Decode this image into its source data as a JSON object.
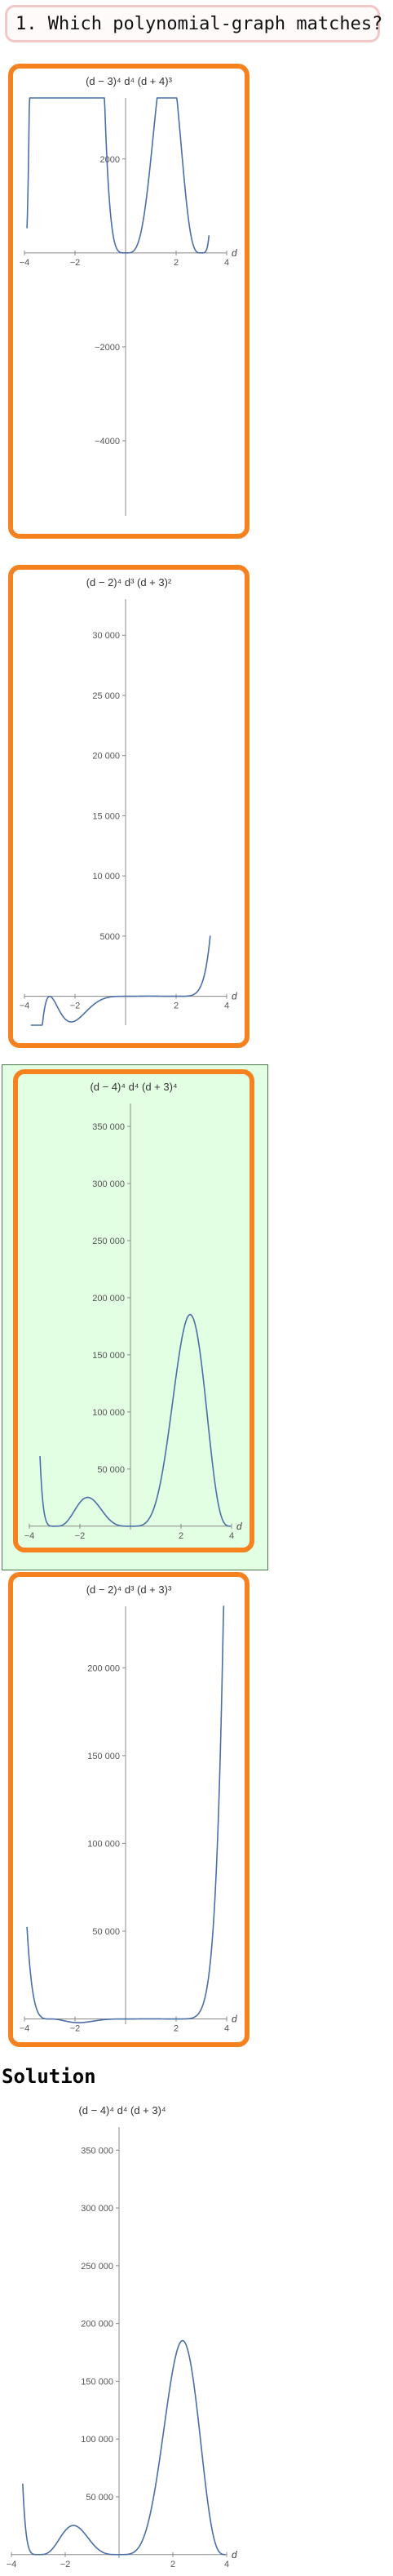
{
  "question": {
    "text": "1. Which polynomial-graph matches?"
  },
  "options": [
    {
      "id": "A",
      "title": "(d − 3)⁴ d⁴ (d + 4)³",
      "roots": [
        [
          3,
          4
        ],
        [
          0,
          4
        ],
        [
          -4,
          3
        ]
      ],
      "xlim": [
        -4,
        4
      ],
      "ylim": [
        -5600,
        3300
      ],
      "x_plot_range": [
        -3.9,
        3.3
      ],
      "x_ticks": [
        -4,
        -2,
        2,
        4
      ],
      "x_tick_labels": [
        "−4",
        "−2",
        "2",
        "4"
      ],
      "y_ticks": [
        2000,
        -2000,
        -4000
      ],
      "y_tick_labels": [
        "2000",
        "−2000",
        "−4000"
      ],
      "xlabel": "d",
      "selected": false
    },
    {
      "id": "B",
      "title": "(d − 2)⁴ d³ (d + 3)²",
      "roots": [
        [
          2,
          4
        ],
        [
          0,
          3
        ],
        [
          -3,
          2
        ]
      ],
      "xlim": [
        -4,
        4
      ],
      "ylim": [
        -2400,
        33000
      ],
      "x_plot_range": [
        -3.75,
        3.35
      ],
      "x_ticks": [
        -4,
        -2,
        2,
        4
      ],
      "x_tick_labels": [
        "−4",
        "−2",
        "2",
        "4"
      ],
      "y_ticks": [
        5000,
        10000,
        15000,
        20000,
        25000,
        30000
      ],
      "y_tick_labels": [
        "5000",
        "10 000",
        "15 000",
        "20 000",
        "25 000",
        "30 000"
      ],
      "xlabel": "d",
      "selected": false
    },
    {
      "id": "C",
      "title": "(d − 4)⁴ d⁴ (d + 3)⁴",
      "roots": [
        [
          4,
          4
        ],
        [
          0,
          4
        ],
        [
          -3,
          4
        ]
      ],
      "xlim": [
        -4,
        4
      ],
      "ylim": [
        -3000,
        370000
      ],
      "x_plot_range": [
        -3.58,
        3.96
      ],
      "x_ticks": [
        -4,
        -2,
        2,
        4
      ],
      "x_tick_labels": [
        "−4",
        "−2",
        "2",
        "4"
      ],
      "y_ticks": [
        50000,
        100000,
        150000,
        200000,
        250000,
        300000,
        350000
      ],
      "y_tick_labels": [
        "50 000",
        "100 000",
        "150 000",
        "200 000",
        "250 000",
        "300 000",
        "350 000"
      ],
      "xlabel": "d",
      "selected": true
    },
    {
      "id": "D",
      "title": "(d − 2)⁴ d³ (d + 3)³",
      "roots": [
        [
          2,
          4
        ],
        [
          0,
          3
        ],
        [
          -3,
          3
        ]
      ],
      "xlim": [
        -4,
        4
      ],
      "ylim": [
        -3000,
        235000
      ],
      "x_plot_range": [
        -3.9,
        3.9
      ],
      "x_ticks": [
        -4,
        -2,
        2,
        4
      ],
      "x_tick_labels": [
        "−4",
        "−2",
        "2",
        "4"
      ],
      "y_ticks": [
        50000,
        100000,
        150000,
        200000
      ],
      "y_tick_labels": [
        "50 000",
        "100 000",
        "150 000",
        "200 000"
      ],
      "xlabel": "d",
      "selected": false
    }
  ],
  "solution": {
    "heading": "Solution",
    "title": "(d − 4)⁴ d⁴ (d + 3)⁴",
    "roots": [
      [
        4,
        4
      ],
      [
        0,
        4
      ],
      [
        -3,
        4
      ]
    ],
    "xlim": [
      -4,
      4
    ],
    "ylim": [
      -3000,
      370000
    ],
    "x_plot_range": [
      -3.58,
      3.96
    ],
    "x_ticks": [
      -4,
      -2,
      2,
      4
    ],
    "x_tick_labels": [
      "−4",
      "−2",
      "2",
      "4"
    ],
    "y_ticks": [
      50000,
      100000,
      150000,
      200000,
      250000,
      300000,
      350000
    ],
    "y_tick_labels": [
      "50 000",
      "100 000",
      "150 000",
      "200 000",
      "250 000",
      "300 000",
      "350 000"
    ],
    "xlabel": "d"
  },
  "colors": {
    "accent": "#f5821f",
    "curve": "#4a6fa5",
    "selected_bg": "#e3ffe3",
    "question_border": "#f4c7c7"
  }
}
